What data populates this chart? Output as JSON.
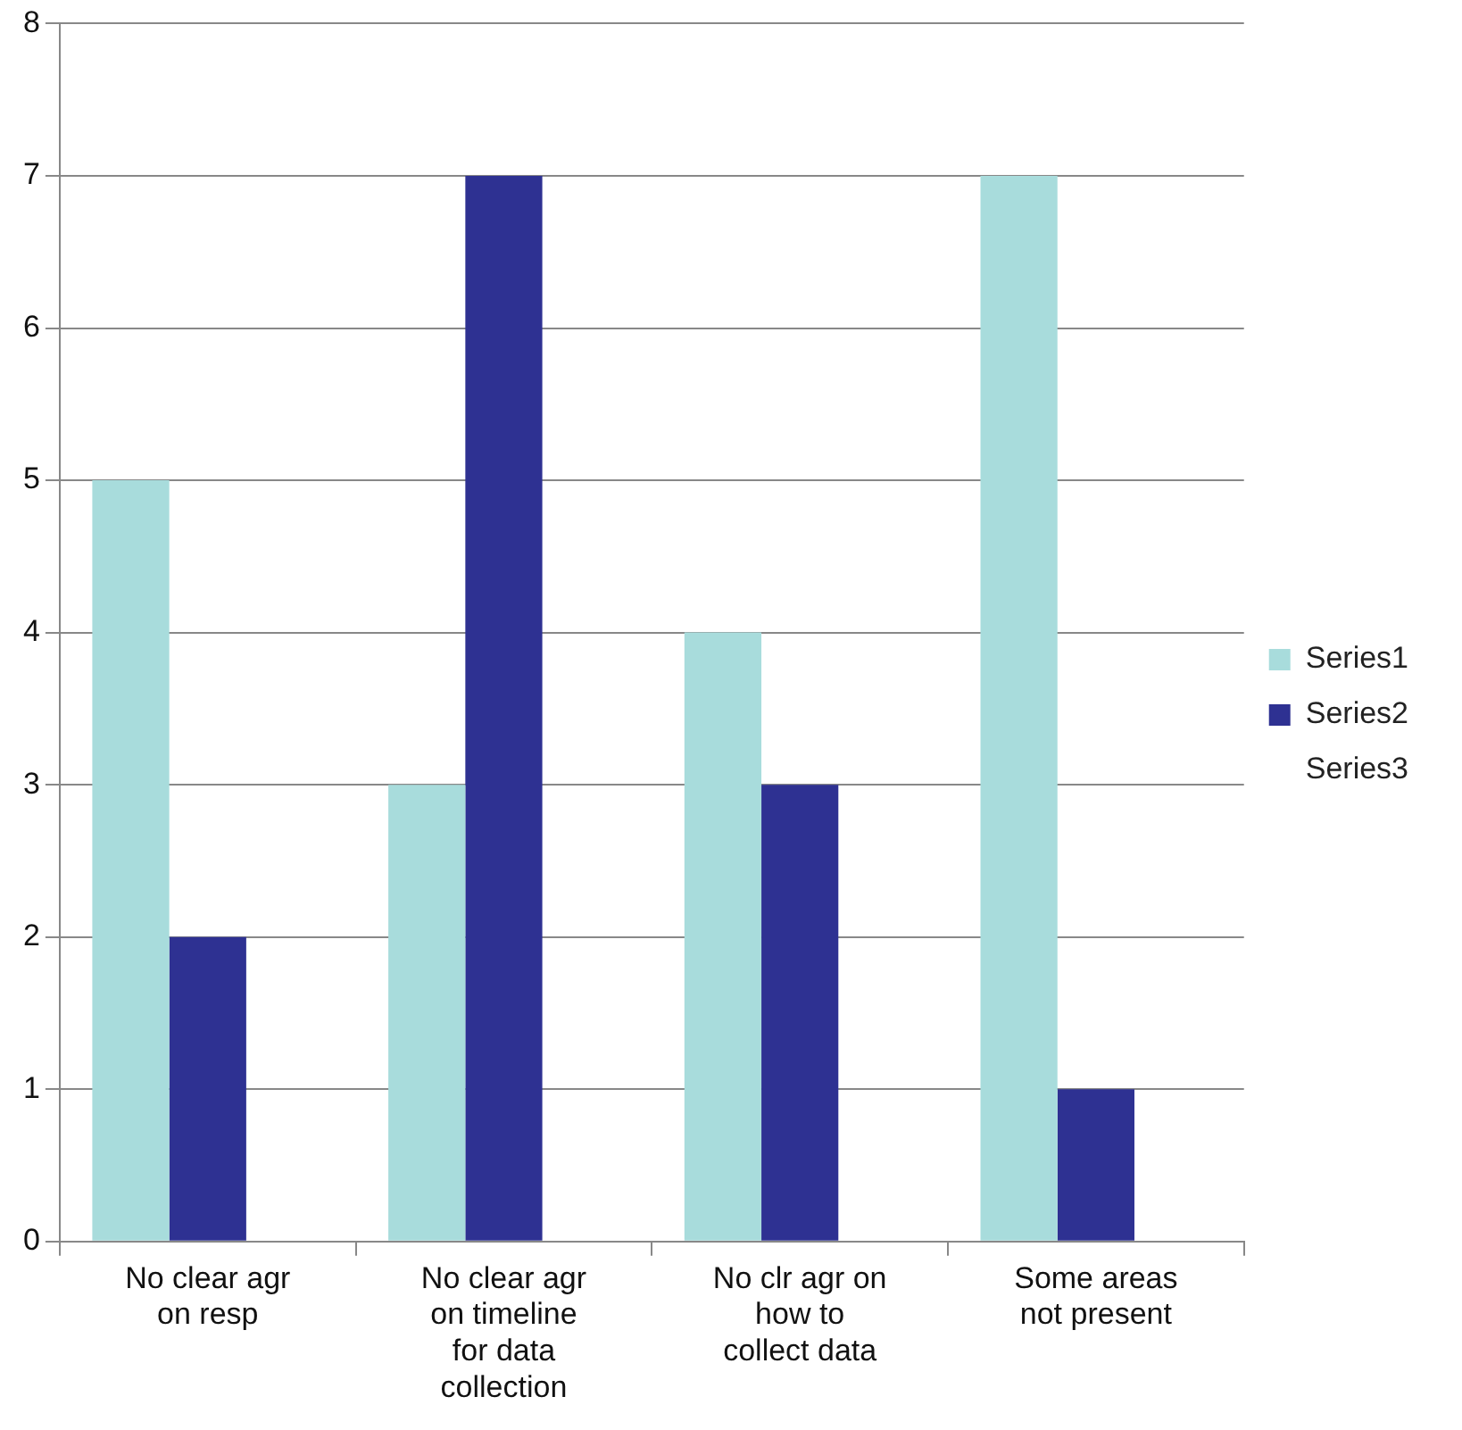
{
  "chart_data": {
    "type": "bar",
    "categories": [
      "No clear agr on resp",
      "No clear agr on timeline for data collection",
      "No clr agr on how to collect data",
      "Some areas not present"
    ],
    "series": [
      {
        "name": "Series1",
        "color": "#a8dcdc",
        "values": [
          5,
          3,
          4,
          7
        ]
      },
      {
        "name": "Series2",
        "color": "#2e3192",
        "values": [
          2,
          7,
          3,
          1
        ]
      },
      {
        "name": "Series3",
        "values": [
          null,
          null,
          null,
          null
        ]
      }
    ],
    "ylim": [
      0,
      8
    ],
    "yticks": [
      0,
      1,
      2,
      3,
      4,
      5,
      6,
      7,
      8
    ],
    "grid": "y",
    "legend": "right"
  }
}
